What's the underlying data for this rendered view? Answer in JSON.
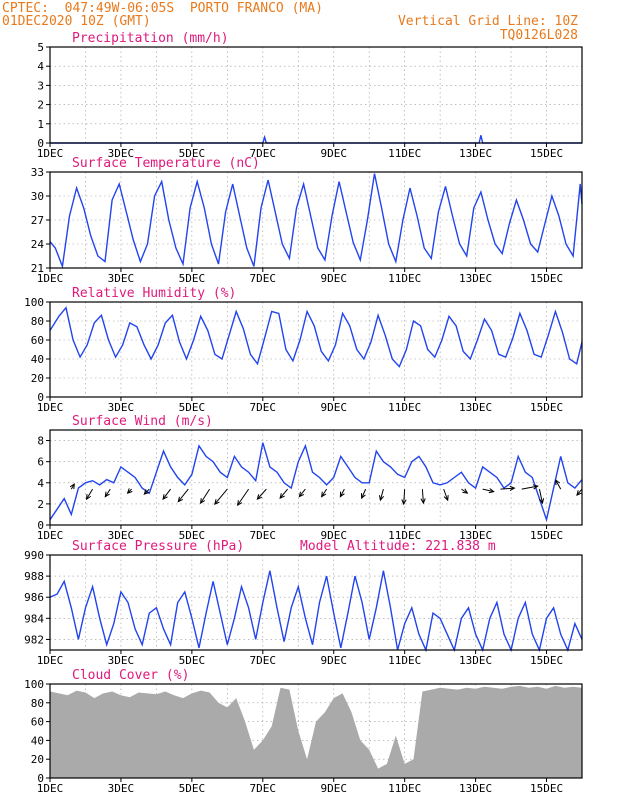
{
  "header": {
    "line1": "CPTEC:  047:49W-06:05S  PORTO FRANCO (MA)",
    "line2": "01DEC2020 10Z (GMT)",
    "right1": "Vertical Grid Line: 10Z",
    "right2": "TQ0126L028",
    "altitude": "Model Altitude: 221.838 m"
  },
  "colors": {
    "header": "#e87a1c",
    "title": "#e0197d",
    "line": "#2244ee",
    "cloud": "#aaaaaa",
    "frame": "#000000",
    "grid": "#999999"
  },
  "x_tick_labels": [
    "1DEC",
    "3DEC",
    "5DEC",
    "7DEC",
    "9DEC",
    "11DEC",
    "13DEC",
    "15DEC"
  ],
  "x_range_days": [
    0,
    15
  ],
  "chart_data": [
    {
      "type": "line",
      "title": "Precipitation (mm/h)",
      "ylim": [
        0,
        5
      ],
      "yticks": [
        "0",
        "1",
        "2",
        "3",
        "4",
        "5"
      ],
      "series": [
        {
          "x": [
            0,
            6.0,
            6.05,
            6.1,
            12.1,
            12.15,
            12.2,
            15
          ],
          "values": [
            0,
            0,
            0.3,
            0,
            0,
            0.4,
            0,
            0
          ]
        }
      ]
    },
    {
      "type": "line",
      "title": "Surface Temperature (nC)",
      "ylim": [
        21,
        33
      ],
      "yticks": [
        "21",
        "24",
        "27",
        "30",
        "33"
      ],
      "series": [
        {
          "x": [
            0,
            0.15,
            0.35,
            0.55,
            0.75,
            0.95,
            1.15,
            1.35,
            1.55,
            1.75,
            1.95,
            2.15,
            2.35,
            2.55,
            2.75,
            2.95,
            3.15,
            3.35,
            3.55,
            3.75,
            3.95,
            4.15,
            4.35,
            4.55,
            4.75,
            4.95,
            5.15,
            5.35,
            5.55,
            5.75,
            5.95,
            6.15,
            6.35,
            6.55,
            6.75,
            6.95,
            7.15,
            7.35,
            7.55,
            7.75,
            7.95,
            8.15,
            8.35,
            8.55,
            8.75,
            8.95,
            9.15,
            9.35,
            9.55,
            9.75,
            9.95,
            10.15,
            10.35,
            10.55,
            10.75,
            10.95,
            11.15,
            11.35,
            11.55,
            11.75,
            11.95,
            12.15,
            12.35,
            12.55,
            12.75,
            12.95,
            13.15,
            13.35,
            13.55,
            13.75,
            13.95,
            14.15,
            14.35,
            14.55,
            14.75,
            14.95,
            15.0
          ],
          "values": [
            24.3,
            23.5,
            21.2,
            27.5,
            31.0,
            28.5,
            25.0,
            22.5,
            21.8,
            29.5,
            31.5,
            28.0,
            24.5,
            21.8,
            24.0,
            30.0,
            31.8,
            27.0,
            23.5,
            21.5,
            28.5,
            31.8,
            28.5,
            24.0,
            21.5,
            28.0,
            31.5,
            27.5,
            23.5,
            21.2,
            28.5,
            32.0,
            28.0,
            24.0,
            22.2,
            28.5,
            31.5,
            27.5,
            23.5,
            22.0,
            27.5,
            31.8,
            28.0,
            24.2,
            22.0,
            27.0,
            32.8,
            28.5,
            24.0,
            21.8,
            27.0,
            31.0,
            27.5,
            23.5,
            22.2,
            28.0,
            31.2,
            27.5,
            24.0,
            22.5,
            28.5,
            30.5,
            27.0,
            24.0,
            22.8,
            26.5,
            29.5,
            27.0,
            24.0,
            23.0,
            26.5,
            30.0,
            27.5,
            24.0,
            22.5,
            31.5,
            29.0
          ]
        }
      ]
    },
    {
      "type": "line",
      "title": "Relative Humidity (%)",
      "ylim": [
        0,
        100
      ],
      "yticks": [
        "0",
        "20",
        "40",
        "60",
        "80",
        "100"
      ],
      "series": [
        {
          "x": [
            0,
            0.25,
            0.45,
            0.65,
            0.85,
            1.05,
            1.25,
            1.45,
            1.65,
            1.85,
            2.05,
            2.25,
            2.45,
            2.65,
            2.85,
            3.05,
            3.25,
            3.45,
            3.65,
            3.85,
            4.05,
            4.25,
            4.45,
            4.65,
            4.85,
            5.05,
            5.25,
            5.45,
            5.65,
            5.85,
            6.05,
            6.25,
            6.45,
            6.65,
            6.85,
            7.05,
            7.25,
            7.45,
            7.65,
            7.85,
            8.05,
            8.25,
            8.45,
            8.65,
            8.85,
            9.05,
            9.25,
            9.45,
            9.65,
            9.85,
            10.05,
            10.25,
            10.45,
            10.65,
            10.85,
            11.05,
            11.25,
            11.45,
            11.65,
            11.85,
            12.05,
            12.25,
            12.45,
            12.65,
            12.85,
            13.05,
            13.25,
            13.45,
            13.65,
            13.85,
            14.05,
            14.25,
            14.45,
            14.65,
            14.85,
            15.0
          ],
          "values": [
            70,
            85,
            94,
            60,
            42,
            55,
            78,
            86,
            60,
            42,
            55,
            78,
            74,
            55,
            40,
            55,
            78,
            86,
            58,
            40,
            60,
            85,
            70,
            45,
            40,
            65,
            90,
            72,
            45,
            35,
            62,
            90,
            88,
            50,
            38,
            60,
            90,
            75,
            48,
            38,
            55,
            88,
            75,
            50,
            40,
            58,
            86,
            65,
            40,
            32,
            50,
            80,
            75,
            50,
            42,
            60,
            85,
            75,
            48,
            40,
            60,
            82,
            70,
            45,
            42,
            62,
            88,
            70,
            45,
            42,
            65,
            90,
            68,
            40,
            35,
            58
          ]
        }
      ]
    },
    {
      "type": "line",
      "title": "Surface Wind (m/s)",
      "ylim": [
        0,
        9
      ],
      "yticks": [
        "0",
        "2",
        "4",
        "6",
        "8"
      ],
      "series": [
        {
          "x": [
            0,
            0.2,
            0.4,
            0.6,
            0.8,
            1.0,
            1.2,
            1.4,
            1.6,
            1.8,
            2.0,
            2.2,
            2.4,
            2.6,
            2.8,
            3.0,
            3.2,
            3.4,
            3.6,
            3.8,
            4.0,
            4.2,
            4.4,
            4.6,
            4.8,
            5.0,
            5.2,
            5.4,
            5.6,
            5.8,
            6.0,
            6.2,
            6.4,
            6.6,
            6.8,
            7.0,
            7.2,
            7.4,
            7.6,
            7.8,
            8.0,
            8.2,
            8.4,
            8.6,
            8.8,
            9.0,
            9.2,
            9.4,
            9.6,
            9.8,
            10.0,
            10.2,
            10.4,
            10.6,
            10.8,
            11.0,
            11.2,
            11.4,
            11.6,
            11.8,
            12.0,
            12.2,
            12.4,
            12.6,
            12.8,
            13.0,
            13.2,
            13.4,
            13.6,
            13.8,
            14.0,
            14.2,
            14.4,
            14.6,
            14.8,
            15.0
          ],
          "values": [
            0.5,
            1.5,
            2.5,
            1.0,
            3.5,
            4.0,
            4.2,
            3.8,
            4.3,
            4.0,
            5.5,
            5.0,
            4.5,
            3.5,
            3.0,
            5.0,
            7.0,
            5.5,
            4.5,
            3.8,
            4.8,
            7.5,
            6.5,
            6.0,
            5.0,
            4.5,
            6.5,
            5.5,
            5.0,
            4.2,
            7.8,
            5.5,
            5.0,
            4.0,
            3.5,
            6.0,
            7.5,
            5.0,
            4.5,
            3.8,
            4.5,
            6.5,
            5.5,
            4.5,
            4.0,
            4.0,
            7.0,
            6.0,
            5.5,
            4.8,
            4.5,
            6.0,
            6.5,
            5.5,
            4.0,
            3.8,
            4.0,
            4.5,
            5.0,
            4.0,
            3.5,
            5.5,
            5.0,
            4.5,
            3.5,
            4.0,
            6.5,
            5.0,
            4.5,
            2.5,
            0.5,
            3.5,
            6.5,
            4.0,
            3.5,
            4.3
          ]
        }
      ],
      "arrows": {
        "x": [
          0.6,
          1.2,
          1.7,
          2.3,
          2.8,
          3.4,
          3.9,
          4.5,
          5.0,
          5.6,
          6.1,
          6.7,
          7.2,
          7.8,
          8.3,
          8.9,
          9.4,
          10.0,
          10.5,
          11.1,
          11.6,
          12.2,
          12.7,
          13.3,
          13.8,
          14.4,
          15.0
        ],
        "y": [
          3.4,
          3.4,
          3.4,
          3.4,
          3.4,
          3.4,
          3.4,
          3.4,
          3.4,
          3.4,
          3.4,
          3.4,
          3.4,
          3.4,
          3.4,
          3.4,
          3.4,
          3.4,
          3.4,
          3.4,
          3.4,
          3.4,
          3.4,
          3.4,
          3.4,
          3.4,
          3.4
        ],
        "u": [
          0.6,
          -1.2,
          -1.0,
          -0.8,
          -1.0,
          -1.5,
          -2.0,
          -1.8,
          -2.5,
          -2.2,
          -1.8,
          -1.5,
          -1.2,
          -1.0,
          -0.8,
          -0.8,
          -0.6,
          -0.2,
          0.2,
          0.8,
          1.2,
          2.2,
          2.8,
          3.2,
          0.6,
          -1.0,
          -1.0
        ],
        "v": [
          1.0,
          -2.0,
          -1.5,
          -0.8,
          -1.0,
          -2.0,
          -2.5,
          -2.8,
          -3.0,
          -3.2,
          -2.0,
          -1.8,
          -1.5,
          -1.5,
          -1.5,
          -1.8,
          -2.2,
          -3.0,
          -2.8,
          -2.2,
          -0.8,
          -0.5,
          0.2,
          0.6,
          -2.8,
          1.8,
          -1.2
        ]
      }
    },
    {
      "type": "line",
      "title": "Surface Pressure (hPa)",
      "ylim": [
        981,
        990
      ],
      "yticks": [
        "982",
        "984",
        "986",
        "988",
        "990"
      ],
      "series": [
        {
          "x": [
            0,
            0.2,
            0.4,
            0.6,
            0.8,
            1.0,
            1.2,
            1.4,
            1.6,
            1.8,
            2.0,
            2.2,
            2.4,
            2.6,
            2.8,
            3.0,
            3.2,
            3.4,
            3.6,
            3.8,
            4.0,
            4.2,
            4.4,
            4.6,
            4.8,
            5.0,
            5.2,
            5.4,
            5.6,
            5.8,
            6.0,
            6.2,
            6.4,
            6.6,
            6.8,
            7.0,
            7.2,
            7.4,
            7.6,
            7.8,
            8.0,
            8.2,
            8.4,
            8.6,
            8.8,
            9.0,
            9.2,
            9.4,
            9.6,
            9.8,
            10.0,
            10.2,
            10.4,
            10.6,
            10.8,
            11.0,
            11.2,
            11.4,
            11.6,
            11.8,
            12.0,
            12.2,
            12.4,
            12.6,
            12.8,
            13.0,
            13.2,
            13.4,
            13.6,
            13.8,
            14.0,
            14.2,
            14.4,
            14.6,
            14.8,
            15.0
          ],
          "values": [
            986.0,
            986.3,
            987.5,
            985.0,
            982.0,
            985.0,
            987.0,
            984.0,
            981.5,
            983.5,
            986.5,
            985.5,
            983.0,
            981.5,
            984.5,
            985.0,
            983.0,
            981.5,
            985.5,
            986.5,
            984.0,
            981.2,
            984.5,
            987.5,
            984.5,
            981.5,
            984.0,
            987.0,
            985.0,
            982.0,
            985.5,
            988.5,
            985.0,
            981.8,
            985.0,
            987.0,
            984.0,
            981.5,
            985.5,
            988.0,
            984.5,
            981.2,
            984.5,
            988.0,
            985.5,
            982.0,
            985.0,
            988.5,
            985.0,
            981.0,
            983.5,
            985.0,
            982.5,
            981.0,
            984.5,
            984.0,
            982.5,
            981.0,
            984.0,
            985.0,
            982.5,
            981.0,
            984.0,
            985.5,
            982.5,
            981.0,
            984.0,
            985.5,
            982.5,
            981.0,
            984.0,
            985.0,
            982.5,
            981.0,
            983.5,
            982.0
          ]
        }
      ]
    },
    {
      "type": "area",
      "title": "Cloud Cover (%)",
      "ylim": [
        0,
        100
      ],
      "yticks": [
        "0",
        "20",
        "40",
        "60",
        "80",
        "100"
      ],
      "series": [
        {
          "x": [
            0,
            0.25,
            0.5,
            0.75,
            1.0,
            1.25,
            1.5,
            1.75,
            2.0,
            2.25,
            2.5,
            2.75,
            3.0,
            3.25,
            3.5,
            3.75,
            4.0,
            4.25,
            4.5,
            4.75,
            5.0,
            5.25,
            5.5,
            5.75,
            6.0,
            6.25,
            6.5,
            6.75,
            7.0,
            7.25,
            7.5,
            7.75,
            8.0,
            8.25,
            8.5,
            8.75,
            9.0,
            9.25,
            9.5,
            9.75,
            10.0,
            10.25,
            10.5,
            10.75,
            11.0,
            11.25,
            11.5,
            11.75,
            12.0,
            12.25,
            12.5,
            12.75,
            13.0,
            13.25,
            13.5,
            13.75,
            14.0,
            14.25,
            14.5,
            14.75,
            15.0
          ],
          "values": [
            92,
            90,
            88,
            93,
            91,
            85,
            90,
            92,
            88,
            86,
            91,
            90,
            89,
            92,
            88,
            85,
            90,
            93,
            91,
            80,
            75,
            85,
            60,
            30,
            40,
            55,
            96,
            94,
            50,
            20,
            60,
            70,
            85,
            90,
            70,
            40,
            30,
            10,
            15,
            45,
            15,
            20,
            92,
            94,
            96,
            95,
            94,
            96,
            95,
            97,
            96,
            95,
            97,
            98,
            96,
            97,
            95,
            98,
            96,
            97,
            96
          ]
        }
      ]
    }
  ]
}
